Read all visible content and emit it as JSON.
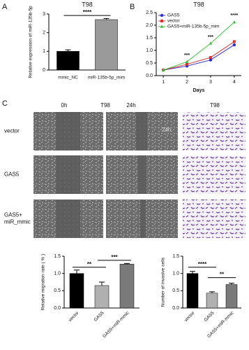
{
  "figure": {
    "panel_labels": [
      "A",
      "B",
      "C"
    ],
    "column_labels": [
      "0h",
      "T98",
      "24h",
      "T98"
    ],
    "row_labels": [
      [
        "vector"
      ],
      [
        "GAS5"
      ],
      [
        "GAS5+",
        "miR_mmic"
      ]
    ],
    "image_label": "24h"
  },
  "chart_data": [
    {
      "type": "bar",
      "title": "T98",
      "ylabel": "Relative expression of miR-135b-5p",
      "categories": [
        "mmic_NC",
        "miR-135b-5p_mim"
      ],
      "values": [
        1.0,
        2.7
      ],
      "errors": [
        0.08,
        0.06
      ],
      "colors": [
        "#000000",
        "#9a9a9a"
      ],
      "ylim": [
        0,
        3
      ],
      "yticks": [
        0,
        1,
        2,
        3
      ],
      "annotations": [
        "****"
      ]
    },
    {
      "type": "line",
      "title": "T98",
      "xlabel": "Days",
      "x": [
        1,
        2,
        3,
        4
      ],
      "xlim": [
        0.7,
        4.3
      ],
      "xticks": [
        1,
        2,
        3,
        4
      ],
      "ylim": [
        0,
        2.5
      ],
      "yticks": [
        {
          "value": 0,
          "label": "0.0"
        },
        0.5,
        {
          "value": 1,
          "label": "1.0"
        },
        1.5,
        {
          "value": 2,
          "label": "2.0"
        },
        2.5
      ],
      "series": [
        {
          "name": "GAS5",
          "color": "#2f2fd8",
          "marker": "circle",
          "values": [
            0.22,
            0.38,
            0.62,
            1.22
          ]
        },
        {
          "name": "vector",
          "color": "#e03030",
          "marker": "square",
          "values": [
            0.22,
            0.45,
            0.72,
            1.35
          ]
        },
        {
          "name": "GAS5+miR-135b-5p_mim",
          "color": "#3cc43c",
          "marker": "triangle",
          "values": [
            0.22,
            0.55,
            1.28,
            2.12
          ]
        }
      ],
      "legend": "upper-left",
      "annotations": [
        "***",
        "***",
        "****"
      ]
    },
    {
      "type": "bar",
      "ylabel": "Relative migration rate ( % )",
      "categories": [
        "vector",
        "GAS5",
        "GAS5+miR-mmic"
      ],
      "values": [
        1.0,
        0.65,
        1.27
      ],
      "errors": [
        0.1,
        0.1,
        0.02
      ],
      "colors": [
        "#000000",
        "#b0b0b0",
        "#7a7a7a"
      ],
      "ylim": [
        0,
        1.5
      ],
      "yticks": [
        {
          "value": 0,
          "label": "0.0"
        },
        0.5,
        {
          "value": 1,
          "label": "1.0"
        },
        1.5
      ],
      "annotations": [
        "**",
        "***"
      ]
    },
    {
      "type": "bar",
      "ylabel": "Number of invasive cells",
      "categories": [
        "vector",
        "GAS5",
        "GAS5+miR-mmic"
      ],
      "values": [
        1.0,
        0.43,
        0.68
      ],
      "errors": [
        0.06,
        0.04,
        0.04
      ],
      "colors": [
        "#000000",
        "#b0b0b0",
        "#7a7a7a"
      ],
      "ylim": [
        0,
        1.5
      ],
      "yticks": [
        {
          "value": 0,
          "label": "0.0"
        },
        0.5,
        {
          "value": 1,
          "label": "1.0"
        },
        1.5
      ],
      "annotations": [
        "****",
        "**"
      ]
    }
  ]
}
